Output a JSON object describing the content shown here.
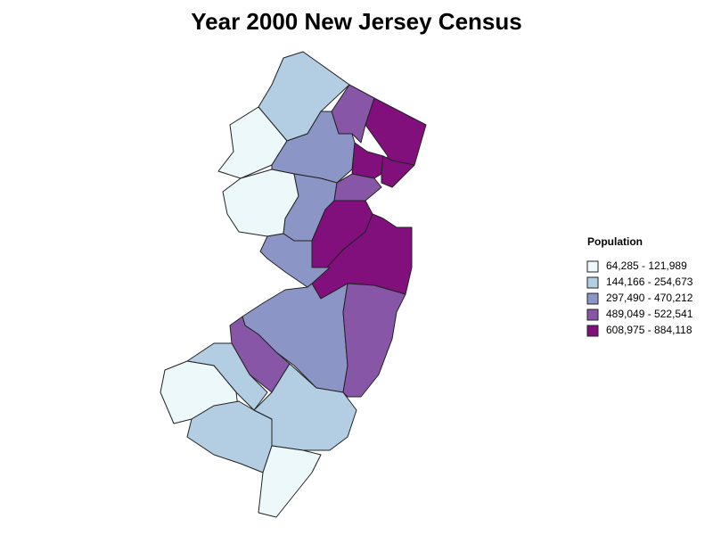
{
  "title": "Year 2000 New Jersey Census",
  "legend": {
    "title": "Population",
    "items": [
      {
        "label": "64,285 - 121,989",
        "color": "#edf8fb"
      },
      {
        "label": "144,166 - 254,673",
        "color": "#b3cde3"
      },
      {
        "label": "297,490 - 470,212",
        "color": "#8c96c6"
      },
      {
        "label": "489,049 - 522,541",
        "color": "#8856a7"
      },
      {
        "label": "608,975 - 884,118",
        "color": "#810f7c"
      }
    ]
  }
}
